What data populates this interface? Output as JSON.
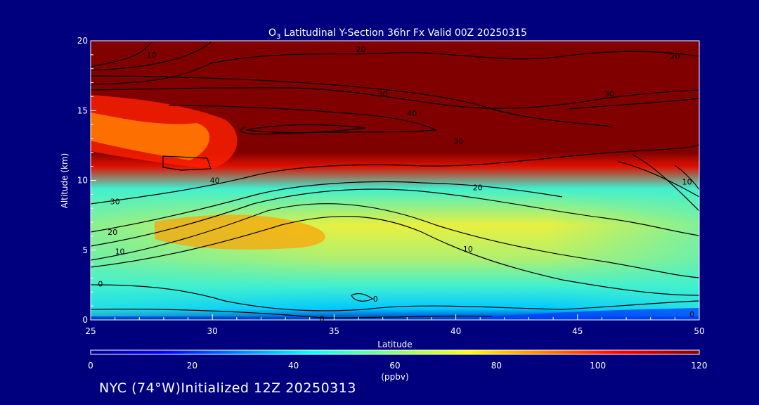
{
  "chart_data": {
    "type": "heatmap",
    "title_prefix": "O",
    "title_sub": "3",
    "title_rest": " Latitudinal Y-Section 36hr  Fx Valid 00Z 20250315",
    "xlabel": "Latitude",
    "ylabel": "Altitude (km)",
    "xlim": [
      25,
      50
    ],
    "ylim": [
      0,
      20
    ],
    "x_ticks": [
      "25",
      "30",
      "35",
      "40",
      "45",
      "50"
    ],
    "y_ticks": [
      "0",
      "5",
      "10",
      "15",
      "20"
    ],
    "colorbar": {
      "range": [
        0,
        120
      ],
      "ticks": [
        "0",
        "20",
        "40",
        "60",
        "80",
        "100",
        "120"
      ],
      "unit": "(ppbv)"
    },
    "contour_labels": [
      {
        "text": "40",
        "lat": 38.2,
        "alt": 14.8
      },
      {
        "text": "30",
        "lat": 37.0,
        "alt": 16.2
      },
      {
        "text": "30",
        "lat": 40.1,
        "alt": 12.8
      },
      {
        "text": "30",
        "lat": 46.3,
        "alt": 16.2
      },
      {
        "text": "20",
        "lat": 36.1,
        "alt": 19.4
      },
      {
        "text": "20",
        "lat": 49.0,
        "alt": 18.9
      },
      {
        "text": "10",
        "lat": 27.5,
        "alt": 19.0
      },
      {
        "text": "40",
        "lat": 30.1,
        "alt": 10.0
      },
      {
        "text": "30",
        "lat": 26.0,
        "alt": 8.5
      },
      {
        "text": "20",
        "lat": 25.9,
        "alt": 6.3
      },
      {
        "text": "10",
        "lat": 26.2,
        "alt": 4.9
      },
      {
        "text": "0",
        "lat": 25.4,
        "alt": 2.6
      },
      {
        "text": "0",
        "lat": 34.5,
        "alt": 0.1
      },
      {
        "text": "0",
        "lat": 36.7,
        "alt": 1.5
      },
      {
        "text": "20",
        "lat": 40.9,
        "alt": 9.5
      },
      {
        "text": "10",
        "lat": 40.5,
        "alt": 5.1
      },
      {
        "text": "10",
        "lat": 49.5,
        "alt": 9.9
      },
      {
        "text": "0",
        "lat": 49.7,
        "alt": 0.4
      }
    ]
  },
  "footer": {
    "note": "NYC (74°W)Initialized 12Z 20250313"
  },
  "colors": {
    "background": "#00007f",
    "text": "#ffffff",
    "contour": "#000000"
  }
}
